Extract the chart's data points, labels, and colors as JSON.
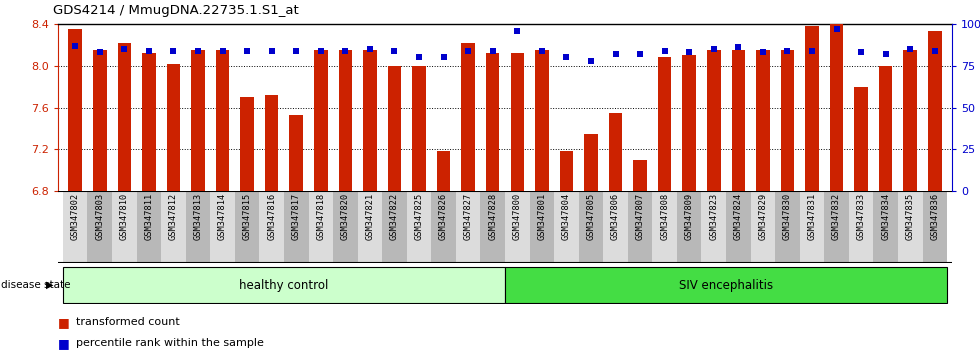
{
  "title": "GDS4214 / MmugDNA.22735.1.S1_at",
  "samples": [
    "GSM347802",
    "GSM347803",
    "GSM347810",
    "GSM347811",
    "GSM347812",
    "GSM347813",
    "GSM347814",
    "GSM347815",
    "GSM347816",
    "GSM347817",
    "GSM347818",
    "GSM347820",
    "GSM347821",
    "GSM347822",
    "GSM347825",
    "GSM347826",
    "GSM347827",
    "GSM347828",
    "GSM347800",
    "GSM347801",
    "GSM347804",
    "GSM347805",
    "GSM347806",
    "GSM347807",
    "GSM347808",
    "GSM347809",
    "GSM347823",
    "GSM347824",
    "GSM347829",
    "GSM347830",
    "GSM347831",
    "GSM347832",
    "GSM347833",
    "GSM347834",
    "GSM347835",
    "GSM347836"
  ],
  "red_values": [
    8.35,
    8.15,
    8.22,
    8.12,
    8.02,
    8.15,
    8.15,
    7.7,
    7.72,
    7.53,
    8.15,
    8.15,
    8.15,
    8.0,
    8.0,
    7.18,
    8.22,
    8.12,
    8.12,
    8.15,
    7.18,
    7.35,
    7.55,
    7.1,
    8.08,
    8.1,
    8.15,
    8.15,
    8.15,
    8.15,
    8.38,
    8.4,
    7.8,
    8.0,
    8.15,
    8.33
  ],
  "blue_values": [
    87,
    83,
    85,
    84,
    84,
    84,
    84,
    84,
    84,
    84,
    84,
    84,
    85,
    84,
    80,
    80,
    84,
    84,
    96,
    84,
    80,
    78,
    82,
    82,
    84,
    83,
    85,
    86,
    83,
    84,
    84,
    97,
    83,
    82,
    85,
    84
  ],
  "ylim_left": [
    6.8,
    8.4
  ],
  "ylim_right": [
    0,
    100
  ],
  "yticks_left": [
    6.8,
    7.2,
    7.6,
    8.0,
    8.4
  ],
  "yticks_right": [
    0,
    25,
    50,
    75,
    100
  ],
  "bar_color": "#CC2200",
  "dot_color": "#0000CC",
  "healthy_count": 18,
  "healthy_label": "healthy control",
  "siv_label": "SIV encephalitis",
  "healthy_color": "#CCFFCC",
  "siv_color": "#44DD44",
  "disease_state_label": "disease state",
  "legend_red": "transformed count",
  "legend_blue": "percentile rank within the sample",
  "bar_width": 0.55,
  "base_value": 6.8,
  "gridline_values": [
    7.2,
    7.6,
    8.0
  ],
  "right_ytick_labels": [
    "0",
    "25",
    "50",
    "75",
    "100%"
  ]
}
